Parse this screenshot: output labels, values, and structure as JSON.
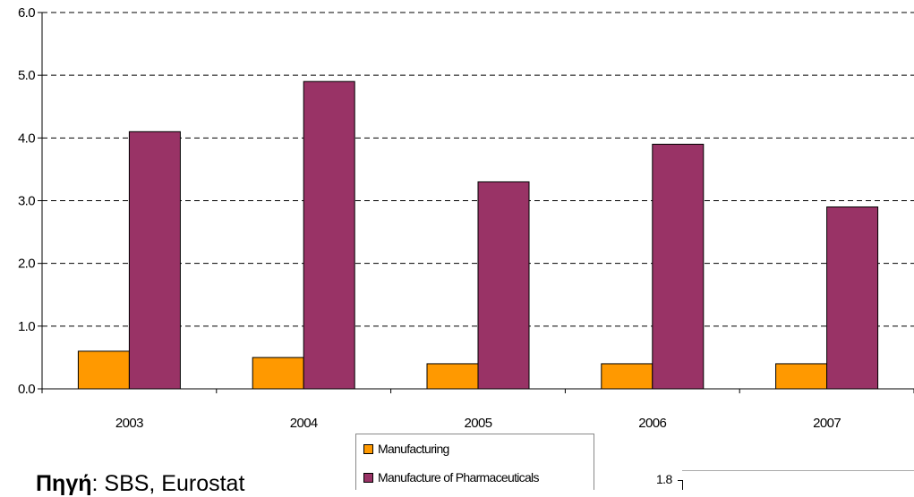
{
  "chart_data": {
    "type": "bar",
    "categories": [
      "2003",
      "2004",
      "2005",
      "2006",
      "2007"
    ],
    "series": [
      {
        "name": "Manufacturing",
        "color": "#FF9900",
        "values": [
          0.6,
          0.5,
          0.4,
          0.4,
          0.4
        ]
      },
      {
        "name": "Manufacture of Pharmaceuticals",
        "color": "#993366",
        "values": [
          4.1,
          4.9,
          3.3,
          3.9,
          2.9
        ]
      }
    ],
    "ylim": [
      0,
      6
    ],
    "yticks": [
      "0.0",
      "1.0",
      "2.0",
      "3.0",
      "4.0",
      "5.0",
      "6.0"
    ],
    "grid": "horizontal dashed",
    "legend_position": "bottom"
  },
  "source": {
    "label": "Πηγή",
    "text": ": SBS, Eurostat"
  },
  "inset": {
    "tick_label": "1.8"
  }
}
